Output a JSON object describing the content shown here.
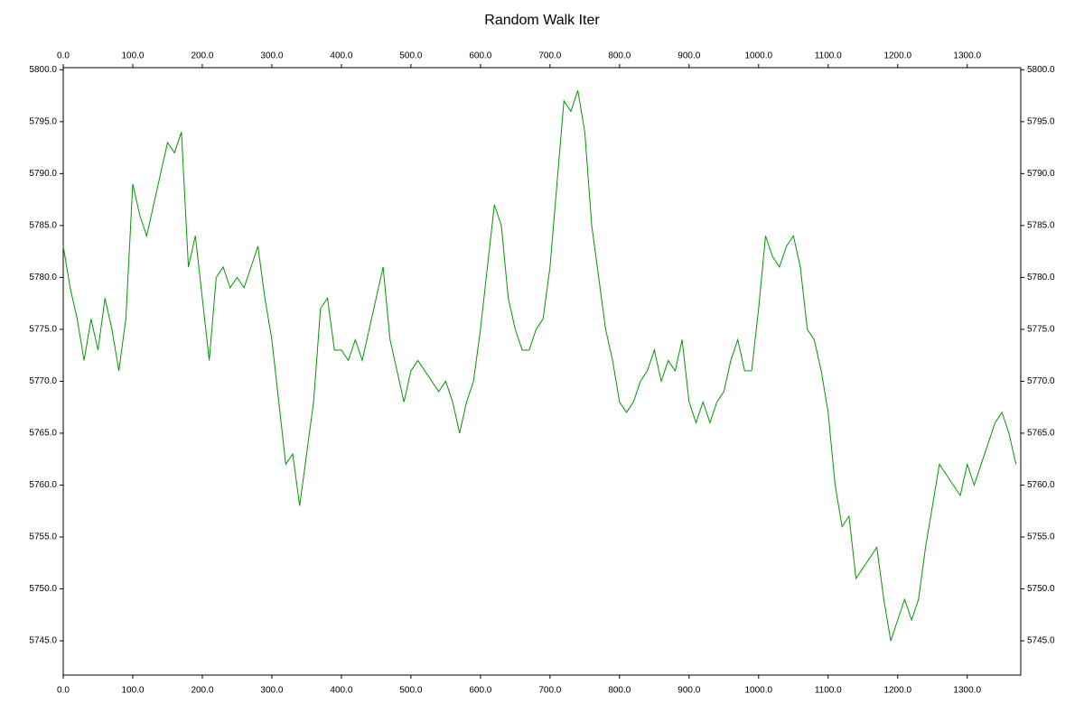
{
  "chart_data": {
    "type": "line",
    "title": "Random Walk Iter",
    "x": [
      0,
      10,
      20,
      30,
      40,
      50,
      60,
      70,
      80,
      90,
      100,
      110,
      120,
      130,
      140,
      150,
      160,
      170,
      180,
      190,
      200,
      210,
      220,
      230,
      240,
      250,
      260,
      270,
      280,
      290,
      300,
      310,
      320,
      330,
      340,
      350,
      360,
      370,
      380,
      390,
      400,
      410,
      420,
      430,
      440,
      450,
      460,
      470,
      480,
      490,
      500,
      510,
      520,
      530,
      540,
      550,
      560,
      570,
      580,
      590,
      600,
      610,
      620,
      630,
      640,
      650,
      660,
      670,
      680,
      690,
      700,
      710,
      720,
      730,
      740,
      750,
      760,
      770,
      780,
      790,
      800,
      810,
      820,
      830,
      840,
      850,
      860,
      870,
      880,
      890,
      900,
      910,
      920,
      930,
      940,
      950,
      960,
      970,
      980,
      990,
      1000,
      1010,
      1020,
      1030,
      1040,
      1050,
      1060,
      1070,
      1080,
      1090,
      1100,
      1110,
      1120,
      1130,
      1140,
      1150,
      1160,
      1170,
      1180,
      1190,
      1200,
      1210,
      1220,
      1230,
      1240,
      1250,
      1260,
      1270,
      1280,
      1290,
      1300,
      1310,
      1320,
      1330,
      1340,
      1350,
      1360,
      1370
    ],
    "values": [
      5783,
      5779,
      5776,
      5772,
      5776,
      5773,
      5778,
      5775,
      5771,
      5776,
      5789,
      5786,
      5784,
      5787,
      5790,
      5793,
      5792,
      5794,
      5781,
      5784,
      5778,
      5772,
      5780,
      5781,
      5779,
      5780,
      5779,
      5781,
      5783,
      5778,
      5774,
      5768,
      5762,
      5763,
      5758,
      5763,
      5768,
      5777,
      5778,
      5773,
      5773,
      5772,
      5774,
      5772,
      5775,
      5778,
      5781,
      5774,
      5771,
      5768,
      5771,
      5772,
      5771,
      5770,
      5769,
      5770,
      5768,
      5765,
      5768,
      5770,
      5775,
      5781,
      5787,
      5785,
      5778,
      5775,
      5773,
      5773,
      5775,
      5776,
      5781,
      5789,
      5797,
      5796,
      5798,
      5794,
      5785,
      5780,
      5775,
      5772,
      5768,
      5767,
      5768,
      5770,
      5771,
      5773,
      5770,
      5772,
      5771,
      5774,
      5768,
      5766,
      5768,
      5766,
      5768,
      5769,
      5772,
      5774,
      5771,
      5771,
      5777,
      5784,
      5782,
      5781,
      5783,
      5784,
      5781,
      5775,
      5774,
      5771,
      5767,
      5760,
      5756,
      5757,
      5751,
      5752,
      5753,
      5754,
      5749,
      5745,
      5747,
      5749,
      5747,
      5749,
      5754,
      5758,
      5762,
      5761,
      5760,
      5759,
      5762,
      5760,
      5762,
      5764,
      5766,
      5767,
      5765,
      5762
    ],
    "color": "#009900",
    "xlim": [
      0,
      1377
    ],
    "ylim": [
      5741.7,
      5800.2
    ],
    "xticks": [
      {
        "value": 0,
        "label": "0.0"
      },
      {
        "value": 100,
        "label": "100.0"
      },
      {
        "value": 200,
        "label": "200.0"
      },
      {
        "value": 300,
        "label": "300.0"
      },
      {
        "value": 400,
        "label": "400.0"
      },
      {
        "value": 500,
        "label": "500.0"
      },
      {
        "value": 600,
        "label": "600.0"
      },
      {
        "value": 700,
        "label": "700.0"
      },
      {
        "value": 800,
        "label": "800.0"
      },
      {
        "value": 900,
        "label": "900.0"
      },
      {
        "value": 1000,
        "label": "1000.0"
      },
      {
        "value": 1100,
        "label": "1100.0"
      },
      {
        "value": 1200,
        "label": "1200.0"
      },
      {
        "value": 1300,
        "label": "1300.0"
      }
    ],
    "yticks": [
      {
        "value": 5745,
        "label": "5745.0"
      },
      {
        "value": 5750,
        "label": "5750.0"
      },
      {
        "value": 5755,
        "label": "5755.0"
      },
      {
        "value": 5760,
        "label": "5760.0"
      },
      {
        "value": 5765,
        "label": "5765.0"
      },
      {
        "value": 5770,
        "label": "5770.0"
      },
      {
        "value": 5775,
        "label": "5775.0"
      },
      {
        "value": 5780,
        "label": "5780.0"
      },
      {
        "value": 5785,
        "label": "5785.0"
      },
      {
        "value": 5790,
        "label": "5790.0"
      },
      {
        "value": 5795,
        "label": "5795.0"
      },
      {
        "value": 5800,
        "label": "5800.0"
      }
    ]
  }
}
